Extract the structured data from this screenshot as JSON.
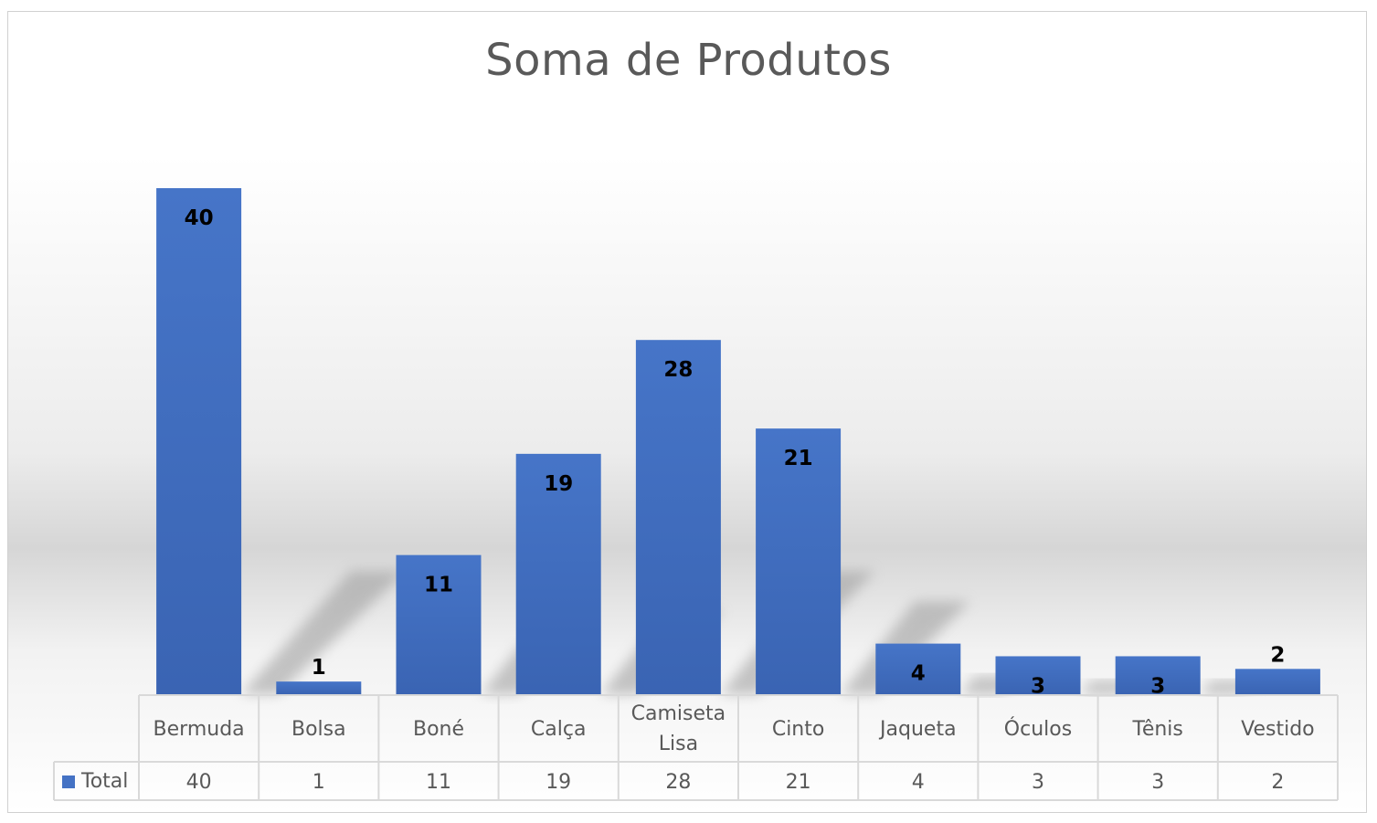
{
  "chart_data": {
    "type": "bar",
    "title": "Soma de Produtos",
    "categories": [
      "Bermuda",
      "Bolsa",
      "Boné",
      "Calça",
      "Camiseta Lisa",
      "Cinto",
      "Jaqueta",
      "Óculos",
      "Tênis",
      "Vestido"
    ],
    "series": [
      {
        "name": "Total",
        "values": [
          40,
          1,
          11,
          19,
          28,
          21,
          4,
          3,
          3,
          2
        ],
        "color": "#4472c4"
      }
    ],
    "data_table": true,
    "legend": "data-table-left",
    "grid": false
  }
}
